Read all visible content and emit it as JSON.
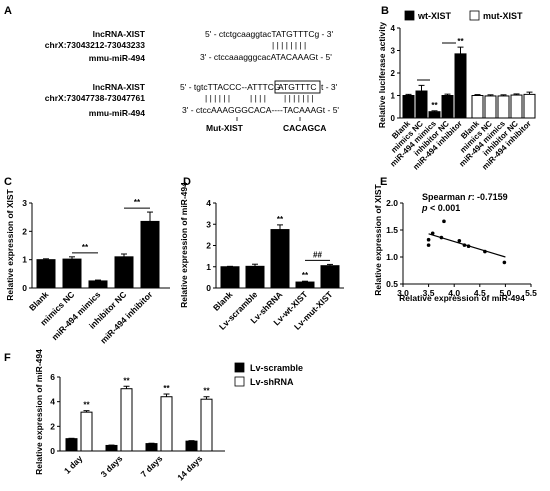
{
  "panel_a": {
    "letter": "A",
    "top": {
      "name1": "lncRNA-XIST",
      "coord": "chrX:73043212-73043233",
      "name2": "mmu-miR-494",
      "seq_top": "5' - ctctgcaaggtacTATGTTTCg - 3'",
      "bars": "| | | | | | | |",
      "seq_bottom": "3' - ctccaaagggcacATACAAAGt - 5'"
    },
    "bottom": {
      "name1": "lncRNA-XIST",
      "coord": "chrX:73047738-73047761",
      "name2": "mmu-miR-494",
      "seq_top_start": "5' - tgtcTTACCC--ATTTCG",
      "seq_top_box": "ATGTTTC",
      "seq_top_end": "t - 3'",
      "bars_left": "| |   | | | |",
      "bars_mid": "| | | |",
      "bars_right": "| | | | | | |",
      "seq_bottom": "3' - ctccAAAGGGCACA----TACAAAGt - 5'",
      "mut_label": "Mut-XIST",
      "mut_seq": "CACAGCA"
    }
  },
  "chart_data": [
    {
      "panel": "B",
      "type": "bar",
      "ylabel": "Relative luciferase activity",
      "ylim": [
        0,
        4
      ],
      "yticks": [
        "0",
        "1",
        "2",
        "3",
        "4"
      ],
      "legend": [
        "wt-XIST",
        "mut-XIST"
      ],
      "categories": [
        "Blank",
        "mimics NC",
        "miR-494 mimics",
        "inhibitor NC",
        "miR-494 inhibitor"
      ],
      "series": [
        {
          "name": "wt-XIST",
          "values": [
            1.0,
            1.2,
            0.28,
            1.0,
            2.85
          ],
          "errors": [
            0.05,
            0.25,
            0.04,
            0.06,
            0.3
          ],
          "sig": [
            "",
            "",
            "**",
            "",
            "**"
          ],
          "color": "#000000"
        },
        {
          "name": "mut-XIST",
          "values": [
            1.0,
            0.98,
            0.98,
            1.02,
            1.05
          ],
          "errors": [
            0.04,
            0.05,
            0.05,
            0.05,
            0.1
          ],
          "sig": [
            "",
            "",
            "",
            "",
            ""
          ],
          "color": "#ffffff"
        }
      ]
    },
    {
      "panel": "C",
      "type": "bar",
      "ylabel": "Relative expression of XIST",
      "ylim": [
        0,
        3
      ],
      "yticks": [
        "0",
        "1",
        "2",
        "3"
      ],
      "categories": [
        "Blank",
        "mimics NC",
        "miR-494 mimics",
        "inhibitor NC",
        "miR-494 inhibitor"
      ],
      "values": [
        1.0,
        1.02,
        0.25,
        1.1,
        2.35
      ],
      "errors": [
        0.03,
        0.08,
        0.03,
        0.1,
        0.33
      ],
      "brackets": [
        {
          "from": 1,
          "to": 2,
          "label": "**"
        },
        {
          "from": 3,
          "to": 4,
          "label": "**"
        }
      ]
    },
    {
      "panel": "D",
      "type": "bar",
      "ylabel": "Relative expression of miR-494",
      "ylim": [
        0,
        4
      ],
      "yticks": [
        "0",
        "1",
        "2",
        "3",
        "4"
      ],
      "categories": [
        "Blank",
        "Lv-scramble",
        "Lv-shRNA",
        "Lv-wt-XIST",
        "Lv-mut-XIST"
      ],
      "values": [
        1.0,
        1.02,
        2.75,
        0.28,
        1.05
      ],
      "errors": [
        0.02,
        0.1,
        0.22,
        0.04,
        0.06
      ],
      "sig": [
        "",
        "",
        "**",
        "**",
        ""
      ],
      "brackets": [
        {
          "from": 3,
          "to": 4,
          "label": "##"
        }
      ]
    },
    {
      "panel": "E",
      "type": "scatter",
      "xlabel": "Relative expression of miR-494",
      "ylabel": "Relative expression of XIST",
      "xlim": [
        3.0,
        5.5
      ],
      "ylim": [
        0.5,
        2.0
      ],
      "xticks": [
        "3.0",
        "3.5",
        "4.0",
        "4.5",
        "5.0",
        "5.5"
      ],
      "yticks": [
        "0.5",
        "1.0",
        "1.5",
        "2.0"
      ],
      "annotation_r_label": "Spearman",
      "annotation_r_sym": "r",
      "annotation_r_value": ": -0.7159",
      "annotation_p_sym": "p",
      "annotation_p_value": "< 0.001",
      "points": [
        {
          "x": 3.5,
          "y": 1.22
        },
        {
          "x": 3.5,
          "y": 1.32
        },
        {
          "x": 3.58,
          "y": 1.44
        },
        {
          "x": 3.75,
          "y": 1.36
        },
        {
          "x": 3.8,
          "y": 1.66
        },
        {
          "x": 4.1,
          "y": 1.3
        },
        {
          "x": 4.2,
          "y": 1.22
        },
        {
          "x": 4.28,
          "y": 1.2
        },
        {
          "x": 4.6,
          "y": 1.1
        },
        {
          "x": 4.98,
          "y": 0.9
        }
      ],
      "fit": {
        "x1": 3.5,
        "y1": 1.43,
        "x2": 5.0,
        "y2": 1.0
      }
    },
    {
      "panel": "F",
      "type": "bar",
      "ylabel": "Relative expression of miR-494",
      "ylim": [
        0,
        6
      ],
      "yticks": [
        "0",
        "2",
        "4",
        "6"
      ],
      "legend": [
        "Lv-scramble",
        "Lv-shRNA"
      ],
      "categories": [
        "1 day",
        "3 days",
        "7 days",
        "14 days"
      ],
      "series": [
        {
          "name": "Lv-scramble",
          "values": [
            1.0,
            0.45,
            0.6,
            0.8
          ],
          "errors": [
            0.03,
            0.03,
            0.03,
            0.04
          ],
          "sig": [
            "",
            "",
            "",
            ""
          ],
          "color": "#000000"
        },
        {
          "name": "Lv-shRNA",
          "values": [
            3.15,
            5.05,
            4.4,
            4.2
          ],
          "errors": [
            0.12,
            0.2,
            0.22,
            0.2
          ],
          "sig": [
            "**",
            "**",
            "**",
            "**"
          ],
          "color": "#ffffff"
        }
      ]
    }
  ]
}
